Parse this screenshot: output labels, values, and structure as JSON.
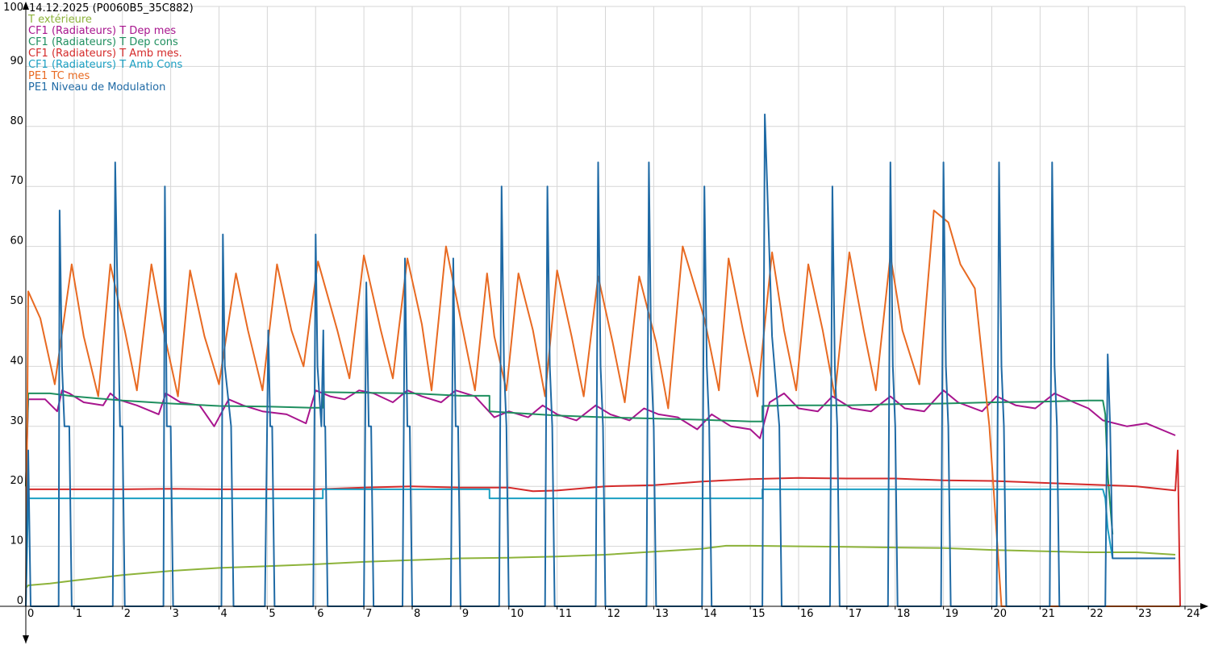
{
  "chart_data": {
    "type": "line",
    "title": "14.12.2025 (P0060B5_35C882)",
    "xlim": [
      0,
      24
    ],
    "ylim": [
      0,
      100
    ],
    "x_ticks": [
      "0",
      "1",
      "2",
      "3",
      "4",
      "5",
      "6",
      "7",
      "8",
      "9",
      "10",
      "11",
      "12",
      "13",
      "14",
      "15",
      "16",
      "17",
      "18",
      "19",
      "20",
      "21",
      "22",
      "23",
      "24"
    ],
    "y_ticks": [
      "0",
      "10",
      "20",
      "30",
      "40",
      "50",
      "60",
      "70",
      "80",
      "90",
      "100"
    ],
    "grid": true,
    "legend_position": "top-left",
    "series": [
      {
        "name": "T extérieure",
        "color": "#8db33a",
        "x": [
          0,
          0.05,
          0.5,
          1,
          2,
          3,
          4,
          5,
          6,
          7,
          8,
          9,
          10,
          11,
          12,
          13,
          14,
          14.5,
          15,
          16,
          17,
          18,
          19,
          20,
          21,
          22,
          23,
          23.8
        ],
        "y": [
          3,
          3.5,
          3.8,
          4.3,
          5.2,
          5.9,
          6.4,
          6.7,
          7,
          7.4,
          7.7,
          8,
          8.1,
          8.3,
          8.6,
          9.1,
          9.6,
          10.1,
          10.1,
          10,
          9.9,
          9.8,
          9.7,
          9.4,
          9.2,
          9,
          9,
          8.6
        ]
      },
      {
        "name": "CF1 (Radiateurs) T Dep mes",
        "color": "#a8158e",
        "x": [
          0,
          0.05,
          0.4,
          0.65,
          0.75,
          0.9,
          1.2,
          1.6,
          1.75,
          1.9,
          2.3,
          2.75,
          2.9,
          3.2,
          3.6,
          3.9,
          4.2,
          4.5,
          4.9,
          5.4,
          5.8,
          6.0,
          6.3,
          6.6,
          6.9,
          7.2,
          7.6,
          7.9,
          8.2,
          8.6,
          8.9,
          9.3,
          9.7,
          10.0,
          10.4,
          10.7,
          11.0,
          11.4,
          11.8,
          12.1,
          12.5,
          12.8,
          13.1,
          13.5,
          13.9,
          14.2,
          14.6,
          15.0,
          15.2,
          15.4,
          15.7,
          16.0,
          16.4,
          16.7,
          17.1,
          17.5,
          17.9,
          18.2,
          18.6,
          19.0,
          19.3,
          19.8,
          20.1,
          20.5,
          20.9,
          21.3,
          21.7,
          22.0,
          22.3,
          22.8,
          23.2,
          23.8
        ],
        "y": [
          20,
          34.5,
          34.5,
          32.5,
          36,
          35.5,
          34,
          33.5,
          35.5,
          34.5,
          33.5,
          32,
          35.5,
          34,
          33.5,
          30,
          34.5,
          33.5,
          32.5,
          32,
          30.5,
          36,
          35,
          34.5,
          36,
          35.5,
          34,
          36,
          35,
          34,
          36,
          35,
          31.5,
          32.5,
          31.5,
          33.5,
          32,
          31,
          33.5,
          32,
          31,
          33,
          32,
          31.5,
          29.5,
          32,
          30,
          29.5,
          28,
          34,
          35.5,
          33,
          32.5,
          35,
          33,
          32.5,
          35,
          33,
          32.5,
          36,
          34,
          32.5,
          35,
          33.5,
          33,
          35.5,
          34,
          33,
          31,
          30,
          30.5,
          28.5
        ]
      },
      {
        "name": "CF1 (Radiateurs) T Dep cons",
        "color": "#1f8f5f",
        "x": [
          0,
          0.05,
          0.5,
          1,
          2,
          3,
          4,
          5,
          5.9,
          6.15,
          6.15,
          7,
          8,
          9,
          9.6,
          9.6,
          10,
          11,
          12,
          13,
          14,
          15,
          15.25,
          15.25,
          16,
          17,
          18,
          19,
          20,
          21,
          22,
          22.3,
          22.35,
          22.4,
          22.5
        ],
        "y": [
          20,
          35.5,
          35.5,
          35,
          34.3,
          33.8,
          33.4,
          33.3,
          33.1,
          33.1,
          35.7,
          35.6,
          35.5,
          35.1,
          35.1,
          32.5,
          32.3,
          31.8,
          31.5,
          31.3,
          31.1,
          30.8,
          30.8,
          33.4,
          33.5,
          33.5,
          33.7,
          33.8,
          34,
          34.1,
          34.3,
          34.3,
          32,
          22,
          12
        ]
      },
      {
        "name": "CF1 (Radiateurs) T Amb mes.",
        "color": "#d42a2a",
        "x": [
          0,
          0.05,
          1,
          2,
          3,
          4,
          5,
          6,
          7,
          8,
          9,
          10,
          10.5,
          11,
          12,
          13,
          14,
          15,
          16,
          17,
          18,
          19,
          20,
          21,
          22,
          23,
          23.8,
          23.85,
          23.9
        ],
        "y": [
          20,
          19.5,
          19.5,
          19.5,
          19.6,
          19.5,
          19.5,
          19.5,
          19.8,
          20,
          19.8,
          19.8,
          19.2,
          19.3,
          20,
          20.2,
          20.8,
          21.2,
          21.4,
          21.3,
          21.3,
          21,
          20.9,
          20.6,
          20.3,
          20,
          19.3,
          26,
          0
        ]
      },
      {
        "name": "CF1 (Radiateurs) T Amb Cons",
        "color": "#1a9fc2",
        "x": [
          0,
          0.05,
          6.15,
          6.15,
          9.6,
          9.6,
          15.25,
          15.25,
          22.3,
          22.35,
          22.4,
          22.5
        ],
        "y": [
          0,
          18,
          18,
          19.5,
          19.5,
          18,
          18,
          19.5,
          19.5,
          18,
          13,
          8
        ]
      },
      {
        "name": "PE1 TC mes",
        "color": "#e86a22",
        "x": [
          0,
          0.05,
          0.3,
          0.6,
          0.95,
          1.2,
          1.5,
          1.75,
          2.05,
          2.3,
          2.6,
          2.85,
          3.15,
          3.4,
          3.7,
          4.0,
          4.35,
          4.6,
          4.9,
          5.2,
          5.5,
          5.75,
          6.05,
          6.45,
          6.7,
          7.0,
          7.35,
          7.6,
          7.9,
          8.2,
          8.4,
          8.7,
          9.05,
          9.3,
          9.55,
          9.7,
          9.95,
          10.2,
          10.5,
          10.75,
          11.0,
          11.3,
          11.55,
          11.85,
          12.15,
          12.4,
          12.7,
          13.05,
          13.3,
          13.6,
          14.05,
          14.35,
          14.55,
          14.85,
          15.15,
          15.45,
          15.7,
          15.95,
          16.2,
          16.5,
          16.75,
          17.05,
          17.35,
          17.6,
          17.9,
          18.15,
          18.5,
          18.8,
          19.1,
          19.35,
          19.65,
          19.95,
          20.2,
          20.55,
          20.8,
          21.1,
          21.45,
          21.7,
          22.0,
          22.3,
          22.5,
          22.65,
          23.0,
          23.5,
          23.8,
          23.85,
          23.9
        ],
        "y": [
          0,
          52.5,
          48,
          37,
          57,
          45,
          35,
          57,
          46,
          36,
          57,
          46,
          35,
          56,
          45,
          37,
          55.5,
          46,
          36,
          57,
          46,
          40,
          57.5,
          46,
          38,
          58.5,
          46,
          38,
          58,
          47,
          36,
          60,
          46,
          36,
          55.5,
          45,
          36,
          55.5,
          46,
          35,
          56,
          45,
          35,
          55,
          44,
          34,
          55,
          44,
          33,
          60,
          48,
          36,
          58,
          46,
          35,
          59,
          46,
          36,
          57,
          46,
          35,
          59,
          46,
          36,
          58.5,
          46,
          37,
          66,
          64,
          57,
          53,
          30,
          0,
          0,
          0,
          0,
          0,
          0,
          0,
          0,
          0,
          0,
          0,
          0,
          0,
          0,
          0
        ]
      },
      {
        "name": "PE1 Niveau de Modulation",
        "color": "#1f6aa5",
        "x": [
          0,
          0.05,
          0.1,
          0.68,
          0.7,
          0.75,
          0.8,
          0.9,
          0.95,
          1.8,
          1.85,
          1.88,
          1.95,
          2.0,
          2.05,
          2.85,
          2.88,
          2.92,
          3.0,
          3.05,
          4.05,
          4.08,
          4.12,
          4.25,
          4.3,
          4.95,
          5.02,
          5.06,
          5.1,
          5.15,
          5.95,
          6.0,
          6.04,
          6.12,
          6.16,
          6.18,
          6.2,
          6.25,
          6.3,
          7.0,
          7.05,
          7.1,
          7.15,
          7.2,
          7.25,
          7.8,
          7.85,
          7.9,
          7.95,
          8.0,
          8.8,
          8.85,
          8.9,
          8.95,
          9.0,
          9.8,
          9.85,
          9.9,
          9.95,
          10.0,
          10.75,
          10.8,
          10.85,
          10.9,
          10.95,
          11.8,
          11.85,
          11.9,
          11.95,
          12.0,
          12.85,
          12.9,
          12.95,
          13.0,
          13.05,
          14.0,
          14.05,
          14.1,
          14.15,
          14.2,
          15.25,
          15.3,
          15.35,
          15.45,
          15.6,
          15.65,
          16.65,
          16.7,
          16.75,
          16.8,
          16.85,
          17.85,
          17.9,
          17.95,
          18.0,
          18.05,
          18.95,
          19.0,
          19.05,
          19.1,
          19.15,
          20.1,
          20.15,
          20.2,
          20.25,
          20.3,
          21.2,
          21.25,
          21.3,
          21.35,
          21.4,
          22.35,
          22.4,
          22.45,
          22.5,
          23.8
        ],
        "y": [
          0,
          26,
          0,
          0,
          66,
          40,
          30,
          30,
          0,
          0,
          74,
          60,
          30,
          30,
          0,
          0,
          70,
          30,
          30,
          0,
          0,
          62,
          40,
          30,
          0,
          0,
          46,
          30,
          30,
          0,
          0,
          62,
          40,
          30,
          46,
          30,
          30,
          0,
          0,
          0,
          54,
          30,
          30,
          0,
          0,
          0,
          58,
          30,
          30,
          0,
          0,
          58,
          30,
          30,
          0,
          0,
          70,
          40,
          30,
          0,
          0,
          70,
          40,
          30,
          0,
          0,
          74,
          40,
          30,
          0,
          0,
          74,
          40,
          30,
          0,
          0,
          70,
          40,
          30,
          0,
          0,
          82,
          70,
          45,
          30,
          0,
          0,
          70,
          40,
          30,
          0,
          0,
          74,
          40,
          30,
          0,
          0,
          74,
          40,
          30,
          0,
          0,
          74,
          40,
          30,
          0,
          0,
          74,
          40,
          30,
          0,
          0,
          42,
          30,
          8,
          8
        ]
      }
    ]
  }
}
